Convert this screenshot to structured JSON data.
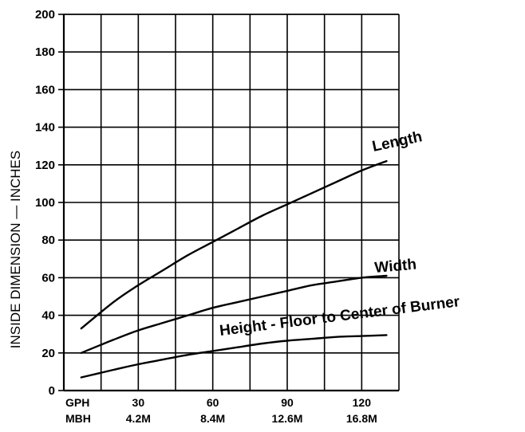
{
  "chart_data": {
    "type": "line",
    "title": "",
    "xlabel": "",
    "ylabel": "INSIDE DIMENSION — INCHES",
    "xlim": [
      0,
      135
    ],
    "ylim": [
      0,
      200
    ],
    "grid": true,
    "y_ticks": [
      "0",
      "20",
      "40",
      "60",
      "80",
      "100",
      "120",
      "140",
      "160",
      "180",
      "200"
    ],
    "x_tick_rows": [
      {
        "label": "GPH",
        "ticks": [
          "30",
          "60",
          "90",
          "120"
        ]
      },
      {
        "label": "MBH",
        "ticks": [
          "4.2M",
          "8.4M",
          "12.6M",
          "16.8M"
        ]
      }
    ],
    "series": [
      {
        "name": "Length",
        "x": [
          7,
          20,
          30,
          40,
          50,
          60,
          70,
          80,
          90,
          100,
          110,
          120,
          130
        ],
        "y": [
          33,
          47,
          56,
          64,
          72,
          79,
          86,
          93,
          99,
          105,
          111,
          117,
          122
        ]
      },
      {
        "name": "Width",
        "x": [
          7,
          20,
          30,
          40,
          50,
          60,
          70,
          80,
          90,
          100,
          110,
          120,
          130
        ],
        "y": [
          20,
          27,
          32,
          36,
          40,
          44,
          47,
          50,
          53,
          56,
          58,
          60,
          61
        ]
      },
      {
        "name": "Height - Floor to Center of Burner",
        "x": [
          7,
          20,
          30,
          40,
          50,
          60,
          70,
          80,
          90,
          100,
          110,
          120,
          130
        ],
        "y": [
          7,
          11,
          14,
          16.5,
          19,
          21,
          23,
          25,
          26.5,
          27.5,
          28.5,
          29,
          29.5
        ]
      }
    ]
  }
}
